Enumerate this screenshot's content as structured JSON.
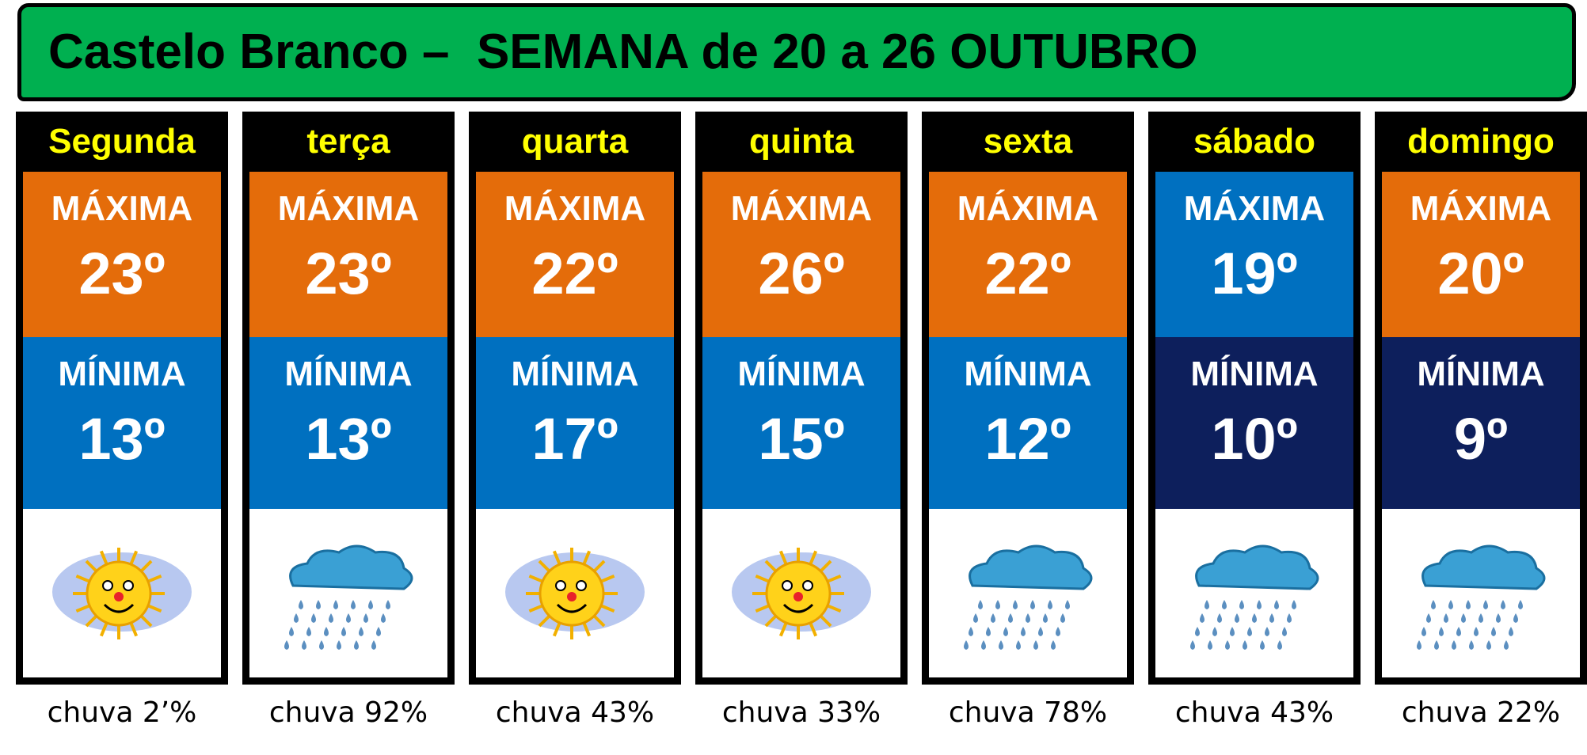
{
  "title": "Castelo Branco –  SEMANA de 20 a 26 OUTUBRO",
  "days": [
    {
      "name": "Segunda",
      "max_label": "MÁXIMA",
      "max": "23º",
      "min_label": "MÍNIMA",
      "min": "13º",
      "rain": "chuva 2’%"
    },
    {
      "name": "terça",
      "max_label": "MÁXIMA",
      "max": "23º",
      "min_label": "MÍNIMA",
      "min": "13º",
      "rain": "chuva 92%"
    },
    {
      "name": "quarta",
      "max_label": "MÁXIMA",
      "max": "22º",
      "min_label": "MÍNIMA",
      "min": "17º",
      "rain": "chuva 43%"
    },
    {
      "name": "quinta",
      "max_label": "MÁXIMA",
      "max": "26º",
      "min_label": "MÍNIMA",
      "min": "15º",
      "rain": "chuva 33%"
    },
    {
      "name": "sexta",
      "max_label": "MÁXIMA",
      "max": "22º",
      "min_label": "MÍNIMA",
      "min": "12º",
      "rain": "chuva 78%"
    },
    {
      "name": "sábado",
      "max_label": "MÁXIMA",
      "max": "19º",
      "min_label": "MÍNIMA",
      "min": "10º",
      "rain": "chuva 43%"
    },
    {
      "name": "domingo",
      "max_label": "MÁXIMA",
      "max": "20º",
      "min_label": "MÍNIMA",
      "min": "9º",
      "rain": "chuva 22%"
    }
  ]
}
